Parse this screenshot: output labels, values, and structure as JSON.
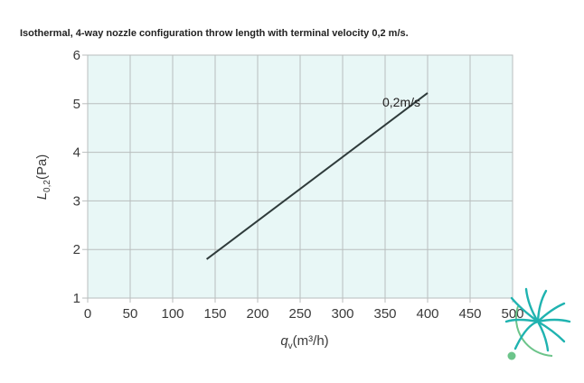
{
  "caption": "Isothermal, 4-way nozzle configuration throw length with terminal velocity 0,2 m/s.",
  "chart_data": {
    "type": "line",
    "title": "Isothermal, 4-way nozzle configuration throw length with terminal velocity 0,2 m/s.",
    "xlabel": "qv(m³/h)",
    "xlabel_main": "q",
    "xlabel_sub": "v",
    "xlabel_rest": "(m³/h)",
    "ylabel": "L0,2(Pa)",
    "ylabel_main": "L",
    "ylabel_sub": "0,2",
    "ylabel_rest": "(Pa)",
    "xlim": [
      0,
      500
    ],
    "ylim": [
      1,
      6
    ],
    "xticks": [
      0,
      50,
      100,
      150,
      200,
      250,
      300,
      350,
      400,
      450,
      500
    ],
    "xtick_labels": [
      "0",
      "50",
      "100",
      "150",
      "200",
      "250",
      "300",
      "350",
      "400",
      "450",
      "500"
    ],
    "yticks": [
      1,
      2,
      3,
      4,
      5,
      6
    ],
    "ytick_labels": [
      "1",
      "2",
      "3",
      "4",
      "5",
      "6"
    ],
    "grid": true,
    "series": [
      {
        "name": "0,2m/s",
        "x": [
          140,
          400
        ],
        "y": [
          1.8,
          5.22
        ]
      }
    ],
    "colors": {
      "plot_bg": "#e8f7f6",
      "grid": "#b9bdbd",
      "line": "#2f3b3b",
      "logo_teal": "#1fb3b0",
      "logo_green": "#6cc48a"
    }
  }
}
